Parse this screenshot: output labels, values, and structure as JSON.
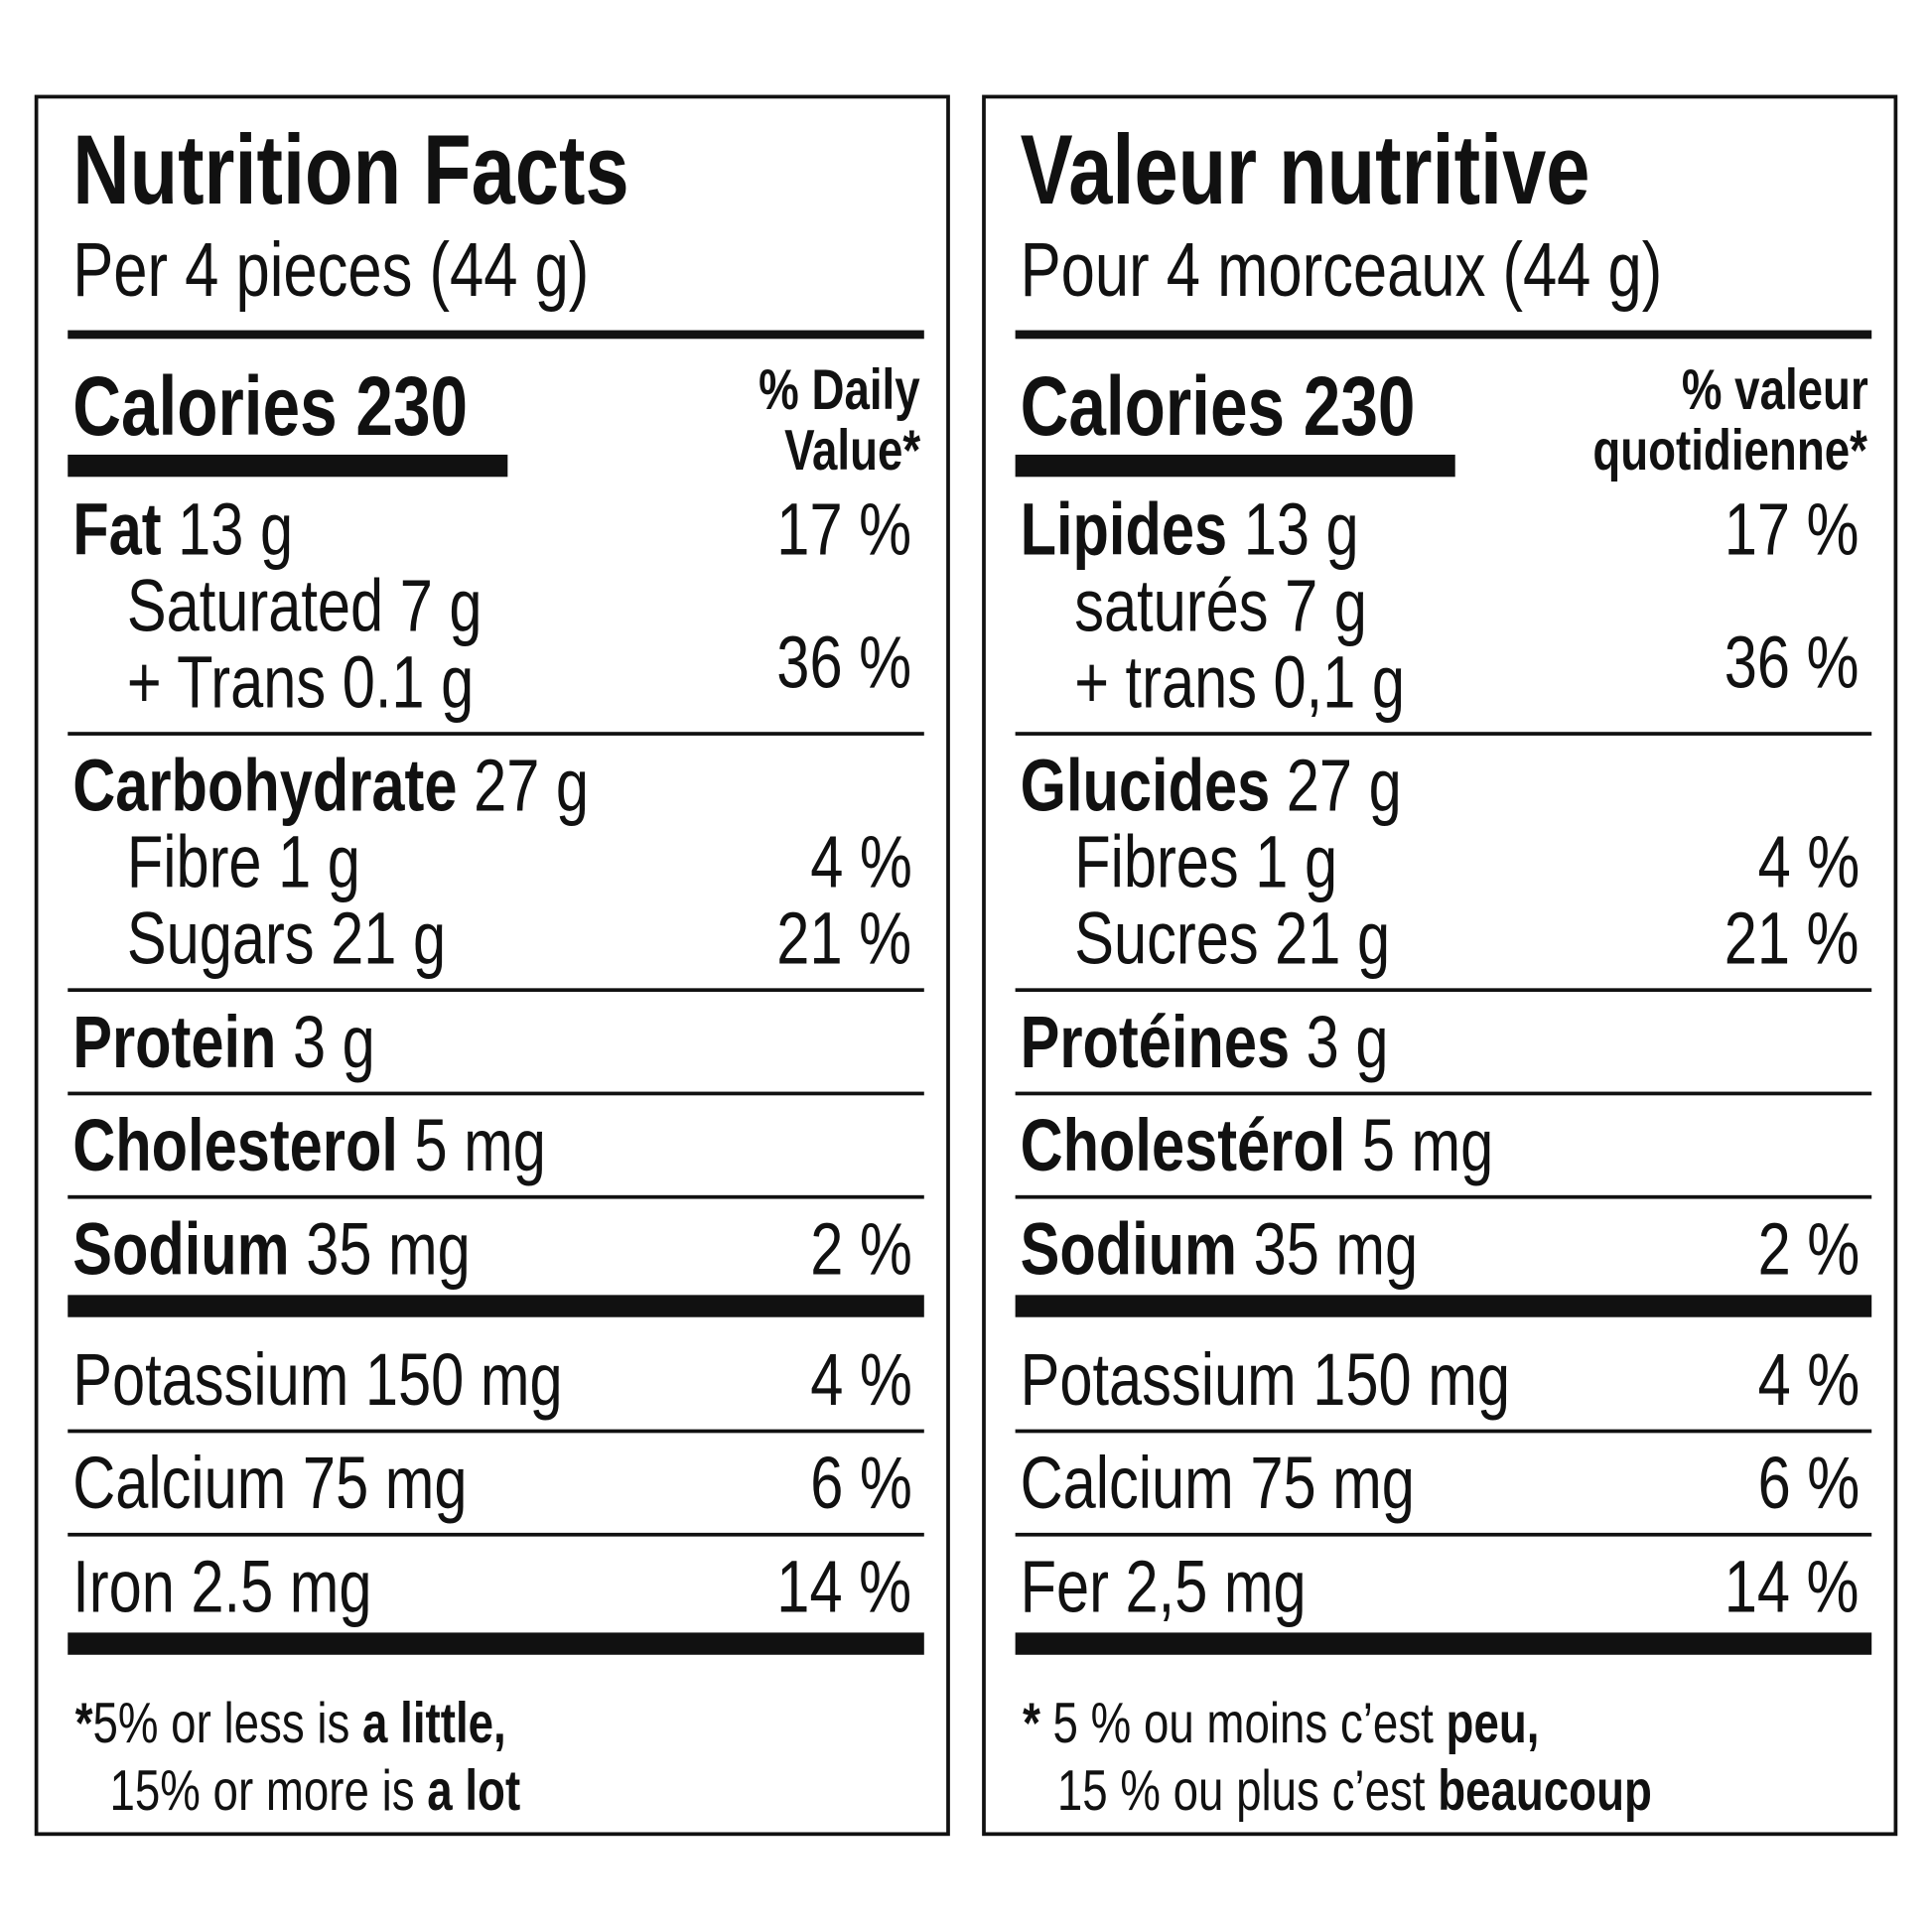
{
  "panels": [
    {
      "title": "Nutrition Facts",
      "serving": "Per 4 pieces (44 g)",
      "calories": "Calories 230",
      "dv_header": [
        "% Daily",
        "Value*"
      ],
      "sections": [
        {
          "rule": "thin",
          "lines": [
            {
              "name": "Fat",
              "amount": "13 g",
              "dv": "17 %"
            },
            {
              "sub": [
                "Saturated 7 g",
                "+ Trans 0.1 g"
              ],
              "dv": "36 %"
            }
          ]
        },
        {
          "rule": "thin",
          "lines": [
            {
              "name": "Carbohydrate",
              "amount": "27 g"
            },
            {
              "sub": [
                "Fibre 1 g"
              ],
              "dv": "4 %"
            },
            {
              "sub": [
                "Sugars 21 g"
              ],
              "dv": "21 %"
            }
          ]
        },
        {
          "rule": "thin",
          "lines": [
            {
              "name": "Protein",
              "amount": "3 g"
            }
          ]
        },
        {
          "rule": "thin",
          "lines": [
            {
              "name": "Cholesterol",
              "amount": "5 mg"
            }
          ]
        },
        {
          "rule": "thick",
          "lines": [
            {
              "name": "Sodium",
              "amount": "35 mg",
              "dv": "2 %"
            }
          ]
        },
        {
          "rule": "thin",
          "lines": [
            {
              "text": "Potassium 150 mg",
              "dv": "4 %"
            }
          ]
        },
        {
          "rule": "thin",
          "lines": [
            {
              "text": "Calcium 75 mg",
              "dv": "6 %"
            }
          ]
        },
        {
          "rule": "thick",
          "lines": [
            {
              "text": "Iron 2.5 mg",
              "dv": "14 %"
            }
          ]
        }
      ],
      "footnote": [
        [
          {
            "bold": "*"
          },
          {
            "regular": "5% or less is "
          },
          {
            "bold": "a little,"
          }
        ],
        [
          {
            "regular": "15% or more is "
          },
          {
            "bold": "a lot"
          }
        ]
      ]
    },
    {
      "title": "Valeur nutritive",
      "serving": "Pour 4 morceaux (44 g)",
      "calories": "Calories 230",
      "dv_header": [
        "% valeur",
        "quotidienne*"
      ],
      "sections": [
        {
          "rule": "thin",
          "lines": [
            {
              "name": "Lipides",
              "amount": "13 g",
              "dv": "17 %"
            },
            {
              "sub": [
                "saturés 7 g",
                "+ trans 0,1 g"
              ],
              "dv": "36 %"
            }
          ]
        },
        {
          "rule": "thin",
          "lines": [
            {
              "name": "Glucides",
              "amount": "27 g"
            },
            {
              "sub": [
                "Fibres 1 g"
              ],
              "dv": "4 %"
            },
            {
              "sub": [
                "Sucres 21 g"
              ],
              "dv": "21 %"
            }
          ]
        },
        {
          "rule": "thin",
          "lines": [
            {
              "name": "Protéines",
              "amount": "3 g"
            }
          ]
        },
        {
          "rule": "thin",
          "lines": [
            {
              "name": "Cholestérol",
              "amount": "5 mg"
            }
          ]
        },
        {
          "rule": "thick",
          "lines": [
            {
              "name": "Sodium",
              "amount": "35 mg",
              "dv": "2 %"
            }
          ]
        },
        {
          "rule": "thin",
          "lines": [
            {
              "text": "Potassium 150 mg",
              "dv": "4 %"
            }
          ]
        },
        {
          "rule": "thin",
          "lines": [
            {
              "text": "Calcium 75 mg",
              "dv": "6 %"
            }
          ]
        },
        {
          "rule": "thick",
          "lines": [
            {
              "text": "Fer 2,5 mg",
              "dv": "14 %"
            }
          ]
        }
      ],
      "footnote": [
        [
          {
            "bold": "* "
          },
          {
            "regular": "5 % ou moins c’est "
          },
          {
            "bold": "peu,"
          }
        ],
        [
          {
            "regular": "15 % ou plus c’est "
          },
          {
            "bold": "beaucoup"
          }
        ]
      ]
    }
  ]
}
